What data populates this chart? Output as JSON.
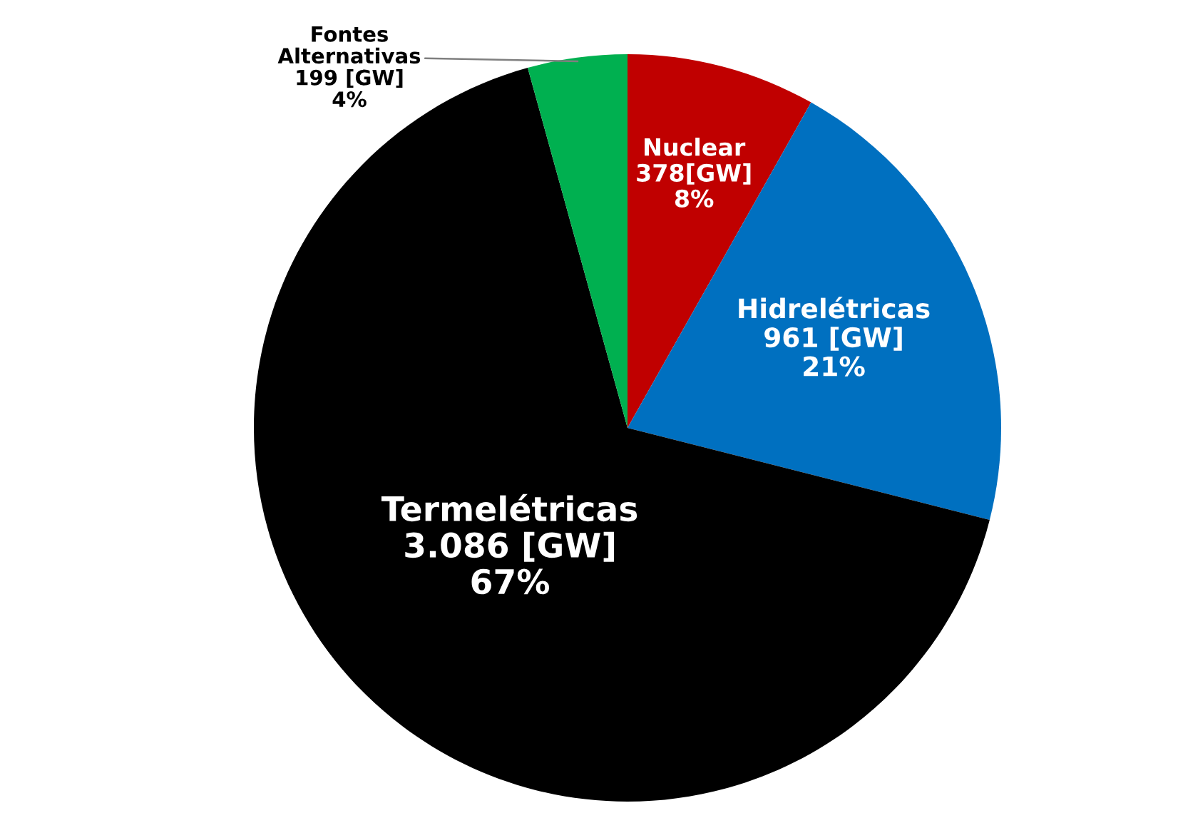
{
  "chart_data": {
    "type": "pie",
    "categories": [
      "Nuclear",
      "Hidrelétricas",
      "Termelétricas",
      "Fontes Alternativas"
    ],
    "values": [
      378,
      961,
      3086,
      199
    ],
    "value_labels": [
      "378[GW]\n8%",
      "961 [GW]\n21%",
      "3.086 [GW]\n67%",
      "199 [GW]\n4%"
    ],
    "colors": [
      "#c00000",
      "#0070c0",
      "#000000",
      "#00b050"
    ],
    "legend": false
  }
}
